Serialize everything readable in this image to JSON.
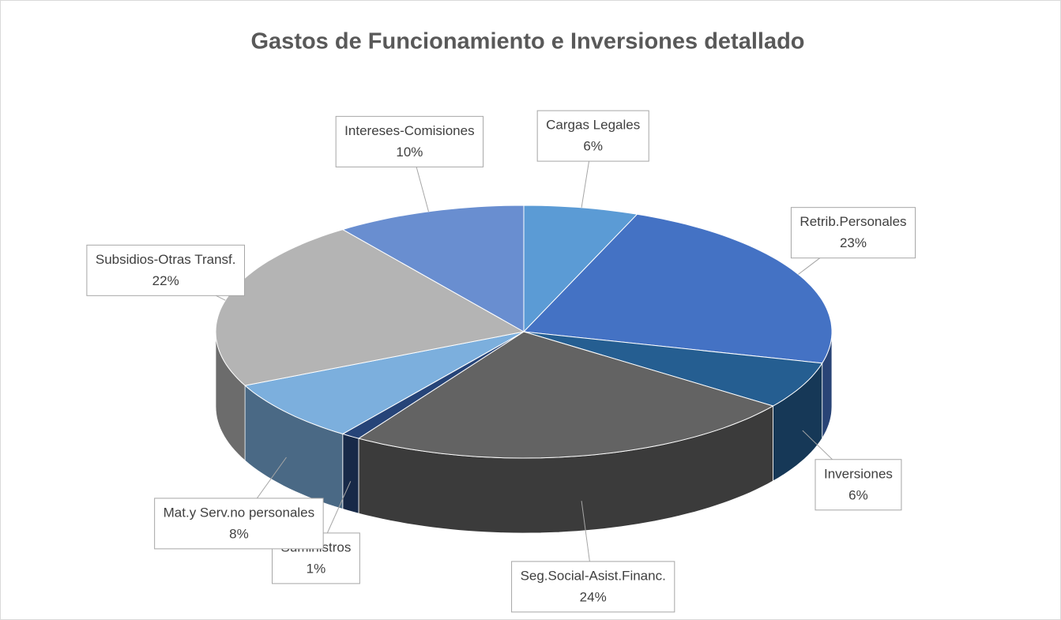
{
  "chart_data": {
    "type": "pie",
    "title": "Gastos de Funcionamiento e Inversiones detallado",
    "categories": [
      "Cargas Legales",
      "Retrib.Personales",
      "Inversiones",
      "Seg.Social-Asist.Financ.",
      "Suministros",
      "Mat.y Serv.no personales",
      "Subsidios-Otras Transf.",
      "Intereses-Comisiones"
    ],
    "values": [
      6,
      23,
      6,
      24,
      1,
      8,
      22,
      10
    ],
    "value_labels": [
      "6%",
      "23%",
      "6%",
      "24%",
      "1%",
      "8%",
      "22%",
      "10%"
    ],
    "colors": [
      "#5b9bd5",
      "#4472c4",
      "#255e91",
      "#636363",
      "#264478",
      "#7cafdd",
      "#b4b4b4",
      "#698ed0"
    ]
  }
}
